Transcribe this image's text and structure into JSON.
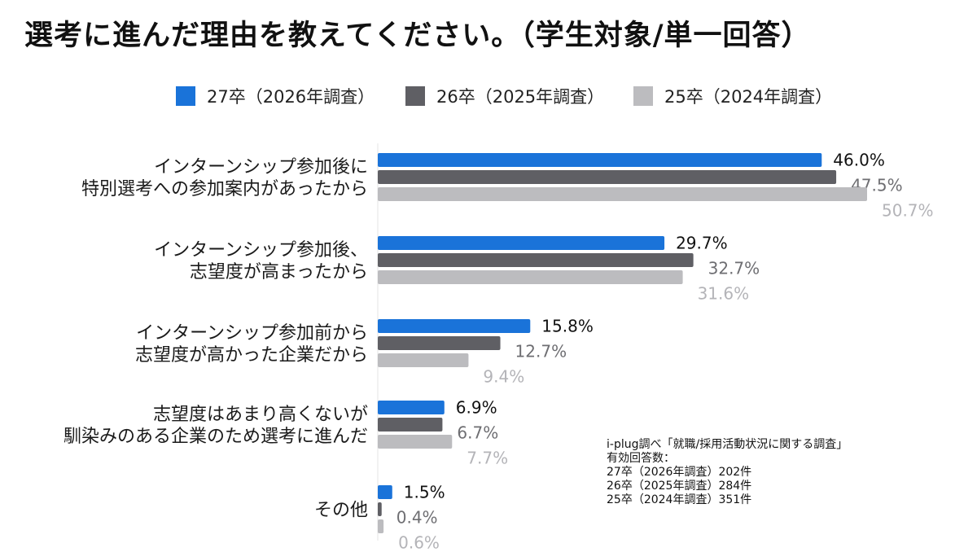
{
  "title": "選考に進んだ理由を教えてください。（学生対象/単一回答）",
  "chart_data": {
    "type": "bar",
    "orientation": "horizontal",
    "title": "選考に進んだ理由を教えてください。（学生対象/単一回答）",
    "categories": [
      [
        "インターンシップ参加後に",
        "特別選考への参加案内があったから"
      ],
      [
        "インターンシップ参加後、",
        "志望度が高まったから"
      ],
      [
        "インターンシップ参加前から",
        "志望度が高かった企業だから"
      ],
      [
        "志望度はあまり高くないが",
        "馴染みのある企業のため選考に進んだ"
      ],
      [
        "その他"
      ]
    ],
    "series": [
      {
        "name": "27卒（2026年調査）",
        "color": "#1a73d9",
        "label_color": "#111111",
        "values": [
          46.0,
          29.7,
          15.8,
          6.9,
          1.5
        ]
      },
      {
        "name": "26卒（2025年調査）",
        "color": "#5f5f64",
        "label_color": "#6e6e72",
        "values": [
          47.5,
          32.7,
          12.7,
          6.7,
          0.4
        ]
      },
      {
        "name": "25卒（2024年調査）",
        "color": "#bcbcbf",
        "label_color": "#b4b4b8",
        "values": [
          50.7,
          31.6,
          9.4,
          7.7,
          0.6
        ]
      }
    ],
    "value_labels": [
      [
        "46.0%",
        "29.7%",
        "15.8%",
        "6.9%",
        "1.5%"
      ],
      [
        "47.5%",
        "32.7%",
        "12.7%",
        "6.7%",
        "0.4%"
      ],
      [
        "50.7%",
        "31.6%",
        "9.4%",
        "7.7%",
        "0.6%"
      ]
    ],
    "xlim": [
      0,
      51
    ],
    "legend_position": "top"
  },
  "source_note": [
    "i-plug調べ「就職/採用活動状況に関する調査」",
    "有効回答数：",
    "27卒（2026年調査）202件",
    "26卒（2025年調査）284件",
    "25卒（2024年調査）351件"
  ]
}
